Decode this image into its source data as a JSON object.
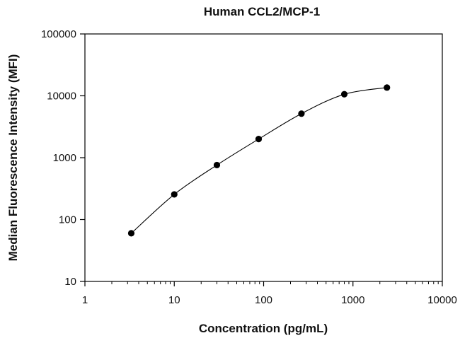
{
  "chart_data": {
    "type": "scatter",
    "title": "Human CCL2/MCP-1",
    "xlabel": "Concentration (pg/mL)",
    "ylabel": "Median Fluorescence Intensity (MFI)",
    "xscale": "log",
    "yscale": "log",
    "xlim": [
      1,
      10000
    ],
    "ylim": [
      10,
      100000
    ],
    "xticks": [
      1,
      10,
      100,
      1000,
      10000
    ],
    "yticks": [
      10,
      100,
      1000,
      10000,
      100000
    ],
    "xtick_labels": [
      "1",
      "10",
      "100",
      "1000",
      "10000"
    ],
    "ytick_labels": [
      "10",
      "100",
      "1000",
      "10000",
      "100000"
    ],
    "grid": false,
    "legend": "none",
    "series": [
      {
        "points": [
          {
            "x": 3.3,
            "y": 60
          },
          {
            "x": 10,
            "y": 255
          },
          {
            "x": 30,
            "y": 760
          },
          {
            "x": 88,
            "y": 2000
          },
          {
            "x": 265,
            "y": 5150
          },
          {
            "x": 800,
            "y": 10600
          },
          {
            "x": 2400,
            "y": 13600
          }
        ],
        "color": "#000000",
        "marker": "circle",
        "fit_line": true
      }
    ]
  }
}
